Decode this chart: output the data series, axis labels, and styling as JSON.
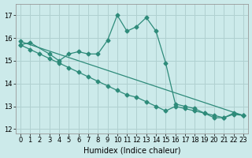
{
  "xlabel": "Humidex (Indice chaleur)",
  "background_color": "#cceaea",
  "grid_color": "#b0d0d0",
  "line_color": "#2e8b7a",
  "xlim": [
    -0.5,
    23.5
  ],
  "ylim": [
    11.8,
    17.5
  ],
  "yticks": [
    12,
    13,
    14,
    15,
    16,
    17
  ],
  "xticks": [
    0,
    1,
    2,
    3,
    4,
    5,
    6,
    7,
    8,
    9,
    10,
    11,
    12,
    13,
    14,
    15,
    16,
    17,
    18,
    19,
    20,
    21,
    22,
    23
  ],
  "series1_x": [
    0,
    1,
    3,
    4,
    5,
    6,
    7,
    8,
    9,
    10,
    11,
    12,
    13,
    14,
    15,
    16,
    17,
    18,
    19,
    20,
    21,
    22,
    23
  ],
  "series1_y": [
    15.7,
    15.8,
    15.3,
    15.0,
    15.3,
    15.4,
    15.3,
    15.3,
    15.9,
    17.0,
    16.3,
    16.5,
    16.9,
    16.3,
    14.9,
    13.1,
    13.0,
    12.9,
    12.7,
    12.5,
    12.5,
    12.7,
    12.6
  ],
  "series2_x": [
    0,
    1,
    2,
    3,
    4,
    5,
    6,
    7,
    8,
    9,
    10,
    11,
    12,
    13,
    14,
    15,
    16,
    17,
    18,
    19,
    20,
    21,
    22,
    23
  ],
  "series2_y": [
    15.7,
    15.5,
    15.3,
    15.1,
    14.9,
    14.7,
    14.5,
    14.3,
    14.1,
    13.9,
    13.7,
    13.5,
    13.4,
    13.2,
    13.0,
    12.8,
    13.0,
    12.9,
    12.8,
    12.7,
    12.6,
    12.5,
    12.65,
    12.6
  ],
  "series3_x": [
    0,
    23
  ],
  "series3_y": [
    15.85,
    12.6
  ]
}
